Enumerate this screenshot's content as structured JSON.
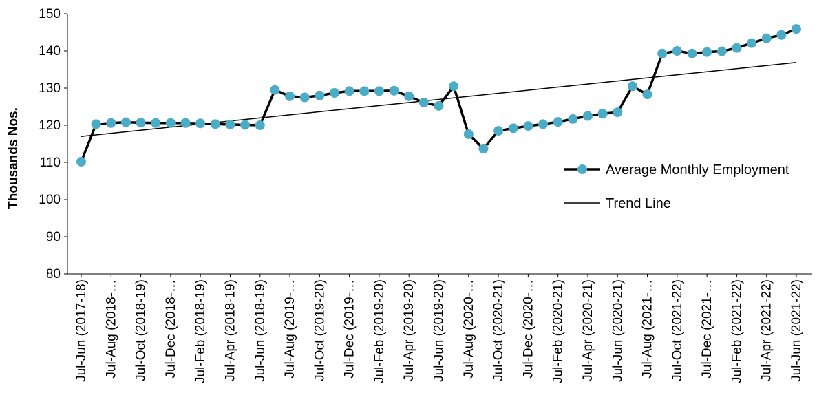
{
  "chart_data": {
    "type": "line",
    "title": "",
    "xlabel": "",
    "ylabel": "Thousands Nos.",
    "ylim": [
      80,
      150
    ],
    "yticks": [
      80,
      90,
      100,
      110,
      120,
      130,
      140,
      150
    ],
    "grid": false,
    "legend_position": "right",
    "colors": {
      "series": "#4BACC6",
      "line": "#000000",
      "trend": "#000000"
    },
    "x_tick_labels": [
      "Jul-Jun (2017-18)",
      "Jul-Aug (2018-…",
      "Jul-Oct (2018-19)",
      "Jul-Dec (2018-…",
      "Jul-Feb (2018-19)",
      "Jul-Apr (2018-19)",
      "Jul-Jun (2018-19)",
      "Jul-Aug (2019-…",
      "Jul-Oct (2019-20)",
      "Jul-Dec (2019-…",
      "Jul-Feb (2019-20)",
      "Jul-Apr (2019-20)",
      "Jul-Jun (2019-20)",
      "Jul-Aug (2020-…",
      "Jul-Oct (2020-21)",
      "Jul-Dec (2020-…",
      "Jul-Feb (2020-21)",
      "Jul-Apr (2020-21)",
      "Jul-Jun (2020-21)",
      "Jul-Aug (2021-…",
      "Jul-Oct (2021-22)",
      "Jul-Dec (2021-…",
      "Jul-Feb (2021-22)",
      "Jul-Apr (2021-22)",
      "Jul-Jun (2021-22)"
    ],
    "series": [
      {
        "name": "Average Monthly Employment",
        "values": [
          110.2,
          120.3,
          120.6,
          120.8,
          120.7,
          120.6,
          120.6,
          120.6,
          120.5,
          120.3,
          120.2,
          120.1,
          120.0,
          129.5,
          127.8,
          127.5,
          128.0,
          128.7,
          129.2,
          129.2,
          129.2,
          129.3,
          127.8,
          126.1,
          125.2,
          130.5,
          117.6,
          113.7,
          118.5,
          119.2,
          119.8,
          120.3,
          120.9,
          121.7,
          122.5,
          123.1,
          123.5,
          130.5,
          128.3,
          139.3,
          140.0,
          139.3,
          139.7,
          139.9,
          140.8,
          142.1,
          143.4,
          144.3,
          145.9
        ]
      },
      {
        "name": "Trend Line",
        "start_value": 117.0,
        "end_value": 136.9
      }
    ]
  }
}
